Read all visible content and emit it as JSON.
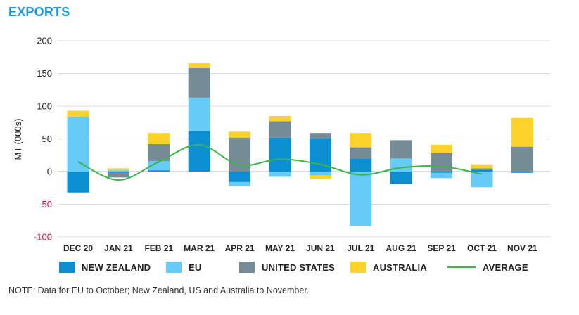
{
  "title": "EXPORTS",
  "note": "NOTE: Data for EU to October; New Zealand, US and Australia to November.",
  "colors": {
    "title": "#1a9ad6",
    "new_zealand": "#0b8fd0",
    "eu": "#66ccf7",
    "united_states": "#758c97",
    "australia": "#fdd22a",
    "average": "#3bb54a",
    "negative_tick": "#c8102e"
  },
  "legend": [
    {
      "key": "new_zealand",
      "label": "NEW ZEALAND",
      "kind": "swatch"
    },
    {
      "key": "eu",
      "label": "EU",
      "kind": "swatch"
    },
    {
      "key": "united_states",
      "label": "UNITED STATES",
      "kind": "swatch"
    },
    {
      "key": "australia",
      "label": "AUSTRALIA",
      "kind": "swatch"
    },
    {
      "key": "average",
      "label": "AVERAGE",
      "kind": "line"
    }
  ],
  "chart_data": {
    "type": "bar",
    "stacked": true,
    "ylabel": "MT (000s)",
    "ylim": [
      -100,
      200
    ],
    "yticks": [
      "200",
      "150",
      "100",
      "50",
      "0",
      "-50",
      "-100"
    ],
    "ytick_values": [
      200,
      150,
      100,
      50,
      0,
      -50,
      -100
    ],
    "grid": true,
    "legend_position": "bottom",
    "categories": [
      "DEC 20",
      "JAN 21",
      "FEB 21",
      "MAR 21",
      "APR 21",
      "MAY 21",
      "JUN 21",
      "JUL 21",
      "AUG 21",
      "SEP 21",
      "OCT 21",
      "NOV 21"
    ],
    "series": [
      {
        "key": "new_zealand",
        "name": "NEW ZEALAND",
        "values": [
          -32,
          -2,
          2,
          62,
          -16,
          52,
          51,
          20,
          -19,
          -2,
          3,
          -2
        ]
      },
      {
        "key": "eu",
        "name": "EU",
        "values": [
          84,
          2,
          14,
          51,
          -6,
          -8,
          -6,
          -83,
          20,
          -8,
          -24,
          0
        ]
      },
      {
        "key": "united_states",
        "name": "UNITED STATES",
        "values": [
          0,
          -7,
          26,
          46,
          52,
          25,
          8,
          17,
          28,
          28,
          2,
          38
        ]
      },
      {
        "key": "australia",
        "name": "AUSTRALIA",
        "values": [
          9,
          3,
          17,
          7,
          9,
          8,
          -5,
          22,
          0,
          13,
          6,
          44
        ]
      }
    ],
    "average": {
      "name": "AVERAGE",
      "values": [
        15,
        -13,
        15,
        41,
        10,
        19,
        11,
        -5,
        6,
        8,
        -4
      ]
    }
  }
}
